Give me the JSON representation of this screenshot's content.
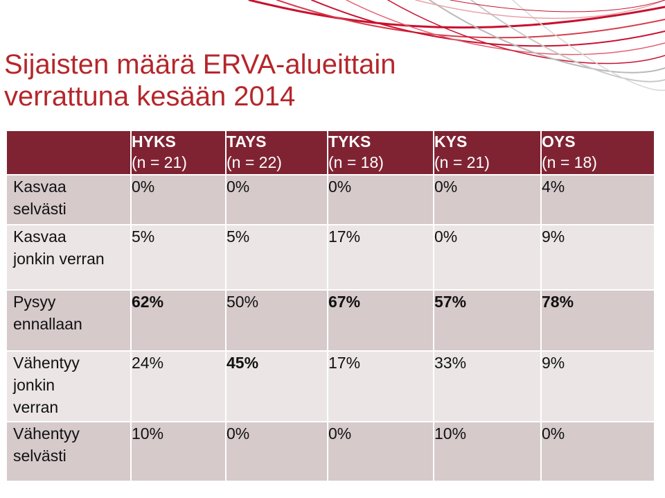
{
  "title": {
    "line1": "Sijaisten määrä ERVA-alueittain",
    "line2": "verrattuna kesään 2014"
  },
  "colors": {
    "title": "#b5262b",
    "header": "#7f2333",
    "row_dark": "#d6cacb",
    "row_light": "#ebe5e5",
    "swoosh_red": "#c8102e",
    "swoosh_grey": "#b9b9b9"
  },
  "columns": [
    {
      "name": "HYKS",
      "n": "(n = 21)"
    },
    {
      "name": "TAYS",
      "n": "(n = 22)"
    },
    {
      "name": "TYKS",
      "n": "(n = 18)"
    },
    {
      "name": "KYS",
      "n": "(n = 21)"
    },
    {
      "name": "OYS",
      "n": "(n = 18)"
    }
  ],
  "rows": [
    {
      "label": [
        "Kasvaa",
        "selvästi"
      ],
      "values": [
        "0%",
        "0%",
        "0%",
        "0%",
        "4%"
      ],
      "bold": [
        false,
        false,
        false,
        false,
        false
      ]
    },
    {
      "label": [
        "Kasvaa",
        "jonkin verran"
      ],
      "values": [
        "5%",
        "5%",
        "17%",
        "0%",
        "9%"
      ],
      "bold": [
        false,
        false,
        false,
        false,
        false
      ]
    },
    {
      "label": [
        "Pysyy",
        "ennallaan"
      ],
      "values": [
        "62%",
        "50%",
        "67%",
        "57%",
        "78%"
      ],
      "bold": [
        true,
        false,
        true,
        true,
        true
      ]
    },
    {
      "label": [
        "Vähentyy",
        "jonkin",
        "verran"
      ],
      "values": [
        "24%",
        "45%",
        "17%",
        "33%",
        "9%"
      ],
      "bold": [
        false,
        true,
        false,
        false,
        false
      ]
    },
    {
      "label": [
        "Vähentyy",
        "selvästi"
      ],
      "values": [
        "10%",
        "0%",
        "0%",
        "10%",
        "0%"
      ],
      "bold": [
        false,
        false,
        false,
        false,
        false
      ]
    }
  ]
}
